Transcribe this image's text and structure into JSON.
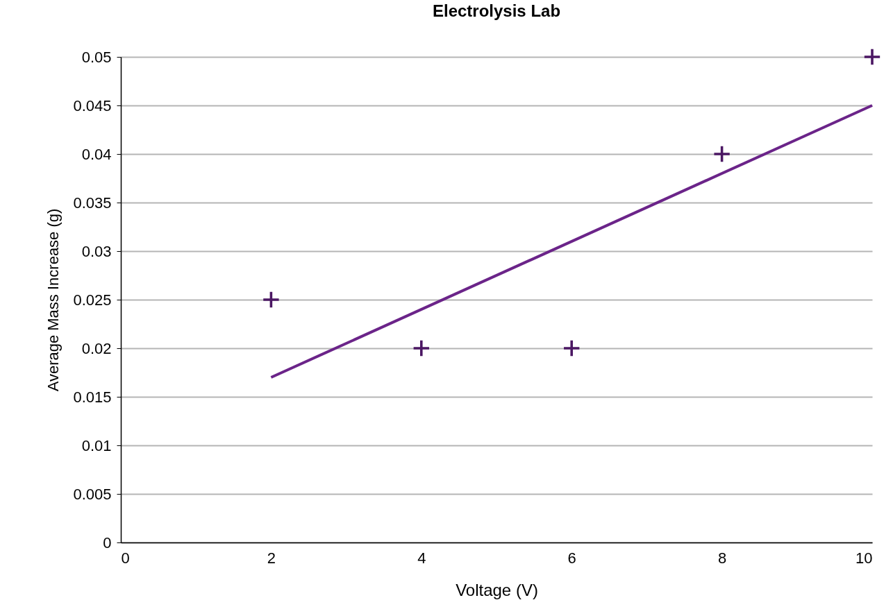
{
  "chart_data": {
    "type": "scatter",
    "title": "Electrolysis Lab",
    "xlabel": "Voltage (V)",
    "ylabel": "Average Mass Increase (g)",
    "xlim": [
      0,
      10
    ],
    "xticks": [
      0,
      2,
      4,
      6,
      8,
      10
    ],
    "ylim": [
      0,
      0.05
    ],
    "yticks": [
      0,
      0.005,
      0.01,
      0.015,
      0.02,
      0.025,
      0.03,
      0.035,
      0.04,
      0.045,
      0.05
    ],
    "grid": "y",
    "series": [
      {
        "marker": "cross",
        "color": "#4b1763",
        "x": [
          2,
          4,
          6,
          8,
          10
        ],
        "values": [
          0.025,
          0.02,
          0.02,
          0.04,
          0.05
        ]
      },
      {
        "type": "line",
        "color": "#6b2489",
        "x": [
          2,
          10
        ],
        "values": [
          0.017,
          0.045
        ]
      }
    ]
  }
}
